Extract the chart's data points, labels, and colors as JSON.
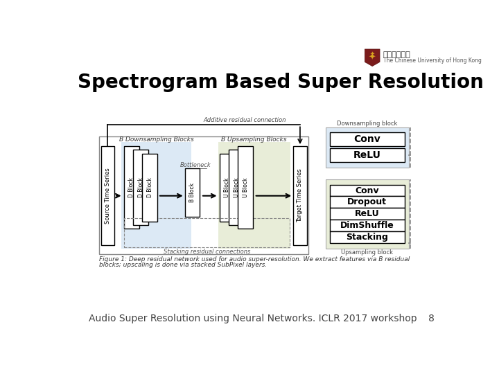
{
  "title": "Spectrogram Based Super Resolution",
  "footer": "Audio Super Resolution using Neural Networks. ICLR 2017 workshop",
  "page_number": "8",
  "bg_color": "#ffffff",
  "title_color": "#000000",
  "title_fontsize": 20,
  "footer_fontsize": 10,
  "figure_caption_line1": "Figure 1: Deep residual network used for audio super-resolution. We extract features via B residual",
  "figure_caption_line2": "blocks; upscaling is done via stacked SubPixel layers.",
  "additive_residual_label": "Additive residual connection",
  "stacking_residual_label": "Stacking residual connections",
  "bottleneck_label": "Bottleneck",
  "downsampling_blocks_label": "B Downsampling Blocks",
  "upsampling_blocks_label": "B Upsampling Blocks",
  "downsampling_block_title": "Downsampling block",
  "upsampling_block_title": "Upsampling block",
  "source_label": "Source Time Series",
  "target_label": "Target Time Series",
  "d_blocks": [
    "D Block",
    "D Block",
    "D Block"
  ],
  "b_block": "B Block",
  "u_blocks": [
    "U Block",
    "U Block",
    "U Block"
  ],
  "downsampling_ops": [
    "Conv",
    "ReLU"
  ],
  "upsampling_ops": [
    "Conv",
    "Dropout",
    "ReLU",
    "DimShuffle",
    "Stacking"
  ],
  "down_bg": "#dce9f5",
  "up_bg": "#e8edd8",
  "down_legend_bg": "#dce9f5",
  "up_legend_bg": "#e8edd8",
  "univ_name_cn": "香港中文大學",
  "univ_name_en": "The Chinese University of Hong Kong"
}
